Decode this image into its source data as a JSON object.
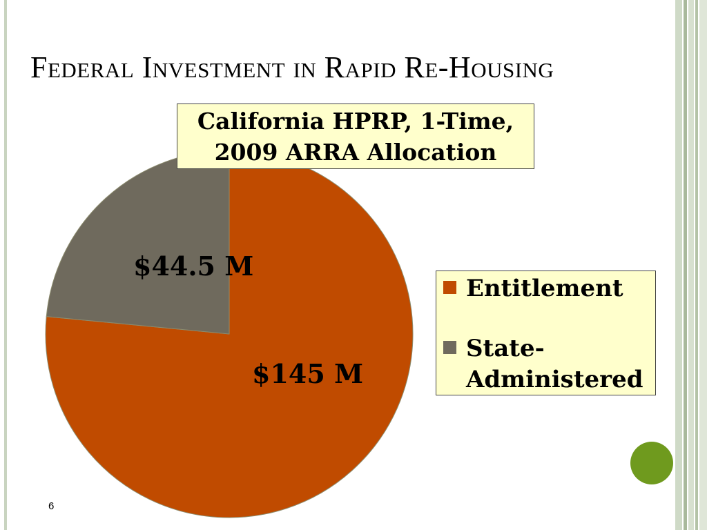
{
  "slide": {
    "title": "Federal Investment in Rapid Re-Housing",
    "slide_number": "6",
    "accent_dot_color": "#6f9a1e"
  },
  "chart_data": {
    "type": "pie",
    "title_lines": [
      "California HPRP, 1-Time,",
      "2009 ARRA Allocation"
    ],
    "slices": [
      {
        "name": "Entitlement",
        "value": 145,
        "label": "$145 M",
        "color": "#c04b00"
      },
      {
        "name": "State-Administered",
        "value": 44.5,
        "label": "$44.5 M",
        "color": "#6f6a5d"
      }
    ],
    "legend": {
      "position": "right",
      "entries": [
        "Entitlement",
        "State-\nAdministered"
      ]
    }
  }
}
